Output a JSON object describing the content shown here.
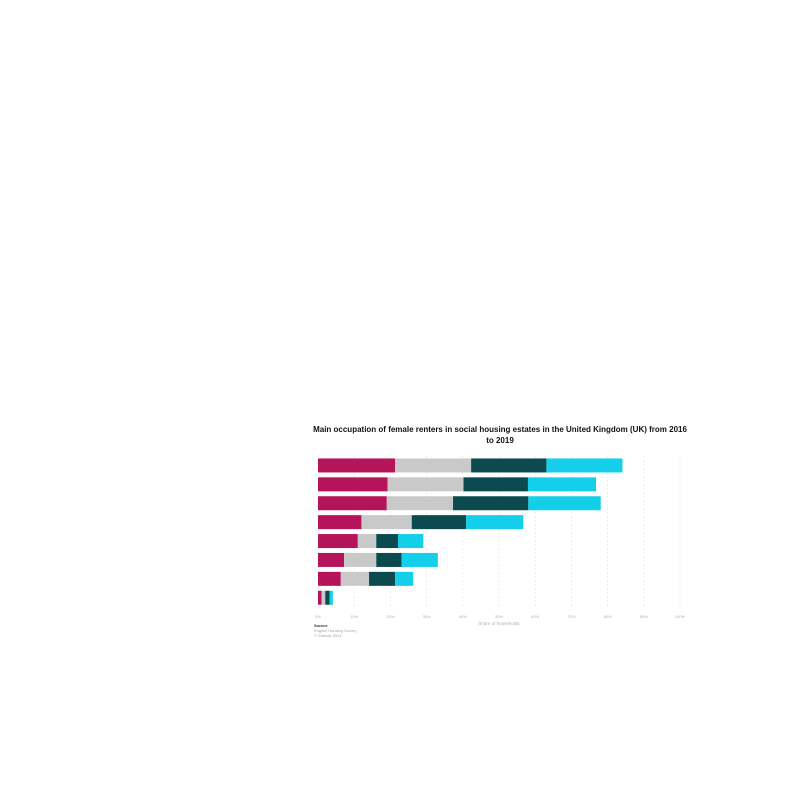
{
  "chart_data": {
    "type": "bar",
    "orientation": "horizontal",
    "stacked": true,
    "title": "Main occupation of female renters in social housing estates in the United Kingdom (UK) from 2016 to 2019",
    "xlabel": "Share of households",
    "ylabel": "",
    "xlim": [
      0,
      100
    ],
    "x_ticks": [
      "0%",
      "10%",
      "20%",
      "30%",
      "40%",
      "50%",
      "60%",
      "70%",
      "80%",
      "90%",
      "100%"
    ],
    "grid": true,
    "categories": [
      "",
      "",
      "",
      "",
      "",
      "",
      "",
      ""
    ],
    "series": [
      {
        "color": "#b5145a",
        "values": [
          21.3,
          19.2,
          19.0,
          12.0,
          11.0,
          7.2,
          6.3,
          1.0
        ]
      },
      {
        "color": "#c9c9c9",
        "values": [
          21.0,
          21.0,
          18.3,
          13.9,
          5.1,
          8.9,
          7.8,
          1.0
        ]
      },
      {
        "color": "#0b4a4f",
        "values": [
          20.8,
          17.8,
          20.8,
          15.0,
          6.0,
          7.0,
          7.2,
          1.2
        ]
      },
      {
        "color": "#14cfea",
        "values": [
          21.0,
          18.8,
          20.0,
          15.8,
          7.0,
          10.0,
          5.0,
          0.9
        ]
      }
    ]
  },
  "source": {
    "heading": "Source",
    "lines": [
      "English Housing Survey",
      "© Statista 2024"
    ]
  }
}
